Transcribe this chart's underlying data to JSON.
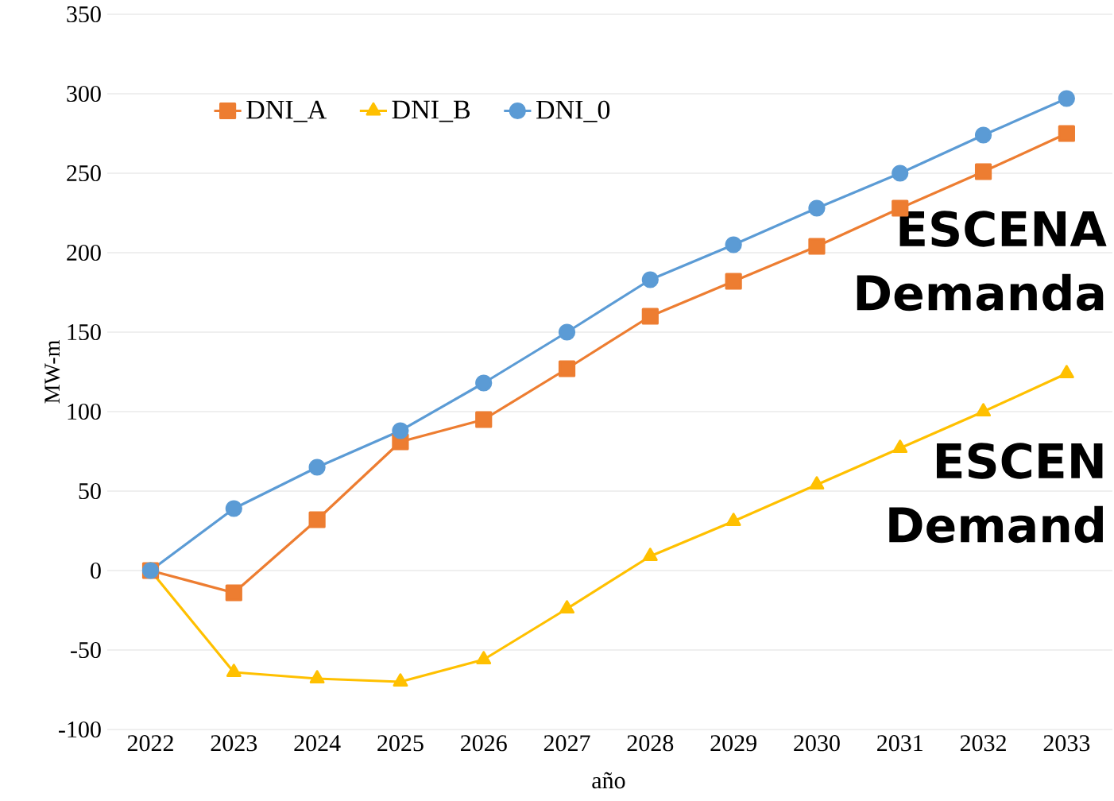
{
  "chart_data": {
    "type": "line",
    "xlabel": "año",
    "ylabel": "MW-m",
    "categories": [
      "2022",
      "2023",
      "2024",
      "2025",
      "2026",
      "2027",
      "2028",
      "2029",
      "2030",
      "2031",
      "2032",
      "2033"
    ],
    "series": [
      {
        "name": "DNI_A",
        "color": "#ed7d31",
        "marker": "square",
        "values": [
          0,
          -14,
          32,
          81,
          95,
          127,
          160,
          182,
          204,
          228,
          251,
          275
        ]
      },
      {
        "name": "DNI_B",
        "color": "#ffc000",
        "marker": "triangle",
        "values": [
          0,
          -64,
          -68,
          -70,
          -56,
          -24,
          9,
          31,
          54,
          77,
          100,
          124
        ]
      },
      {
        "name": "DNI_0",
        "color": "#5b9bd5",
        "marker": "circle",
        "values": [
          0,
          39,
          65,
          88,
          118,
          150,
          183,
          205,
          228,
          250,
          274,
          297
        ]
      }
    ],
    "ylim": [
      -100,
      350
    ],
    "yticks": [
      -100,
      -50,
      0,
      50,
      100,
      150,
      200,
      250,
      300,
      350
    ],
    "grid": "y",
    "legend": "top left",
    "line_style": "solid",
    "annotations": [
      "ESCENA",
      "Demanda",
      "ESCEN",
      "Demand"
    ]
  }
}
